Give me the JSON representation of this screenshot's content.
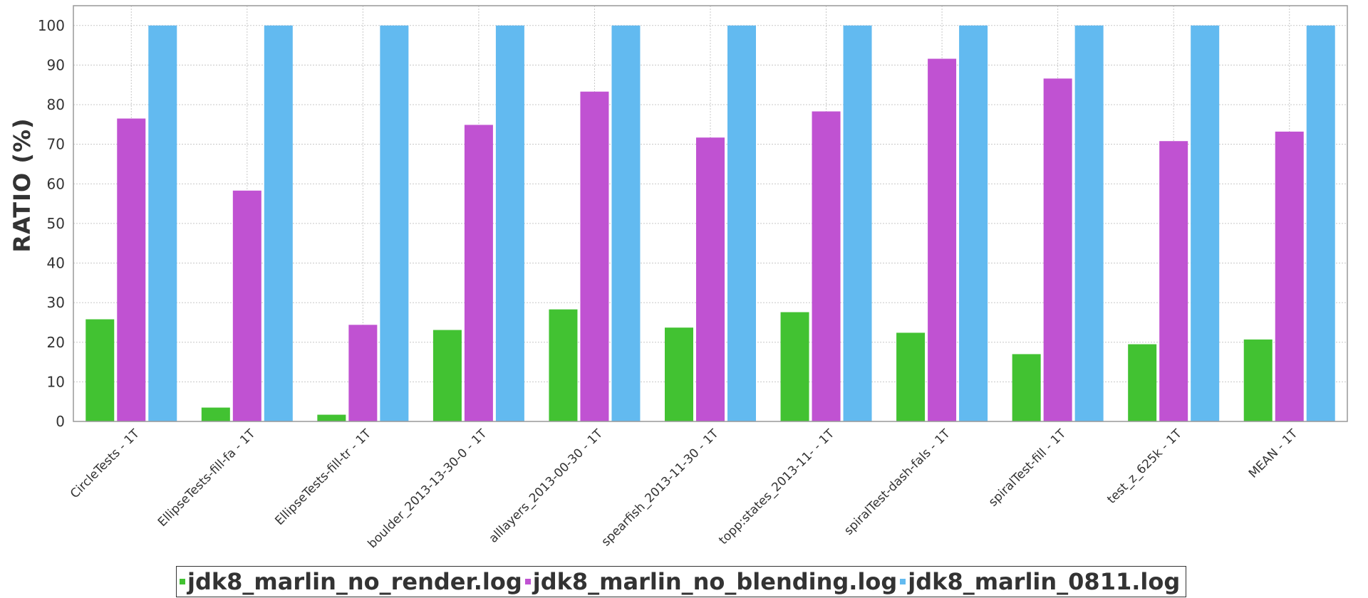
{
  "chart_data": {
    "type": "bar",
    "title": "",
    "xlabel": "",
    "ylabel": "RATIO (%)",
    "ylim": [
      0,
      105
    ],
    "yticks": [
      0,
      10,
      20,
      30,
      40,
      50,
      60,
      70,
      80,
      90,
      100
    ],
    "grid": true,
    "legend_position": "bottom",
    "categories": [
      "CircleTests - 1T",
      "EllipseTests-fill-fa - 1T",
      "EllipseTests-fill-tr - 1T",
      "boulder_2013-13-30-0 - 1T",
      "alllayers_2013-00-30 - 1T",
      "spearfish_2013-11-30 - 1T",
      "topp:states_2013-11- - 1T",
      "spiralTest-dash-fals - 1T",
      "spiralTest-fill - 1T",
      "test_z_625k - 1T",
      "MEAN - 1T"
    ],
    "series": [
      {
        "name": "jdk8_marlin_no_render.log",
        "color": "#42c232",
        "values": [
          25.8,
          3.5,
          1.7,
          23.1,
          28.3,
          23.7,
          27.6,
          22.4,
          17.0,
          19.5,
          20.7
        ]
      },
      {
        "name": "jdk8_marlin_no_blending.log",
        "color": "#c052d2",
        "values": [
          76.5,
          58.3,
          24.4,
          74.9,
          83.3,
          71.7,
          78.3,
          91.6,
          86.6,
          70.8,
          73.2
        ]
      },
      {
        "name": "jdk8_marlin_0811.log",
        "color": "#62baf0",
        "values": [
          100,
          100,
          100,
          100,
          100,
          100,
          100,
          100,
          100,
          100,
          100
        ]
      }
    ]
  }
}
